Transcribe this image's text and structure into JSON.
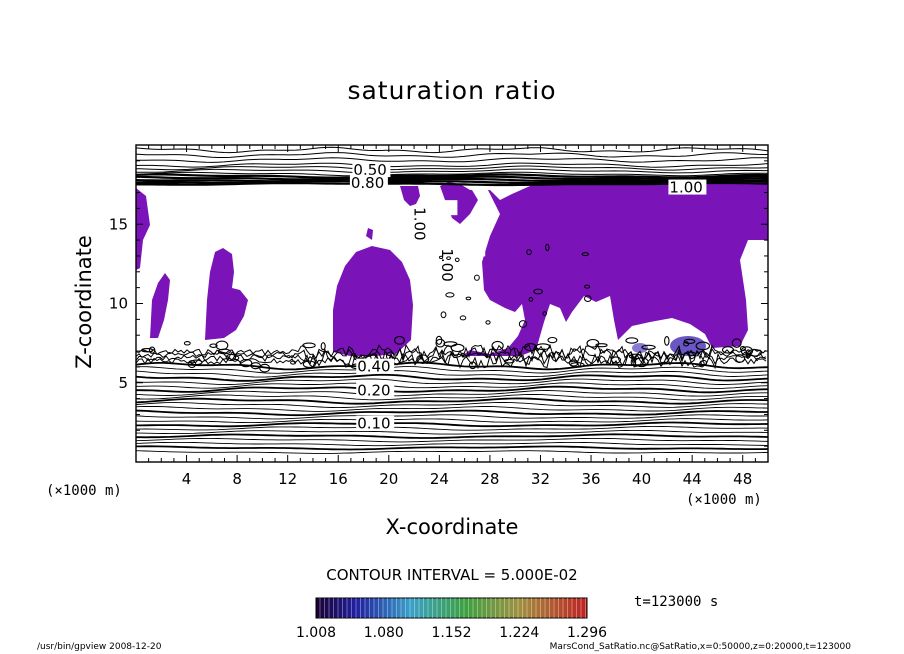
{
  "chart_data": {
    "type": "heatmap",
    "title": "saturation ratio",
    "xlabel": "X-coordinate",
    "ylabel": "Z-coordinate",
    "x_unit": "(×1000 m)",
    "y_unit": "(×1000 m)",
    "xlim": [
      0,
      50
    ],
    "ylim": [
      0,
      20
    ],
    "x_ticks": [
      4,
      8,
      12,
      16,
      20,
      24,
      28,
      32,
      36,
      40,
      44,
      48
    ],
    "y_ticks": [
      5,
      10,
      15
    ],
    "contour_labels": [
      "0.50",
      "0.80",
      "1.00",
      "1.00",
      "1.00",
      "0.40",
      "0.20",
      "0.10"
    ],
    "contour_interval_label": "CONTOUR INTERVAL = 5.000E-02",
    "colorbar": {
      "min": 1.008,
      "max": 1.296,
      "ticks": [
        "1.008",
        "1.080",
        "1.152",
        "1.224",
        "1.296"
      ]
    },
    "time_label": "t=123000 s",
    "fill_color": "#7a13b8"
  },
  "footer": {
    "left": "/usr/bin/gpview  2008-12-20",
    "right": "MarsCond_SatRatio.nc@SatRatio,x=0:50000,z=0:20000,t=123000"
  }
}
